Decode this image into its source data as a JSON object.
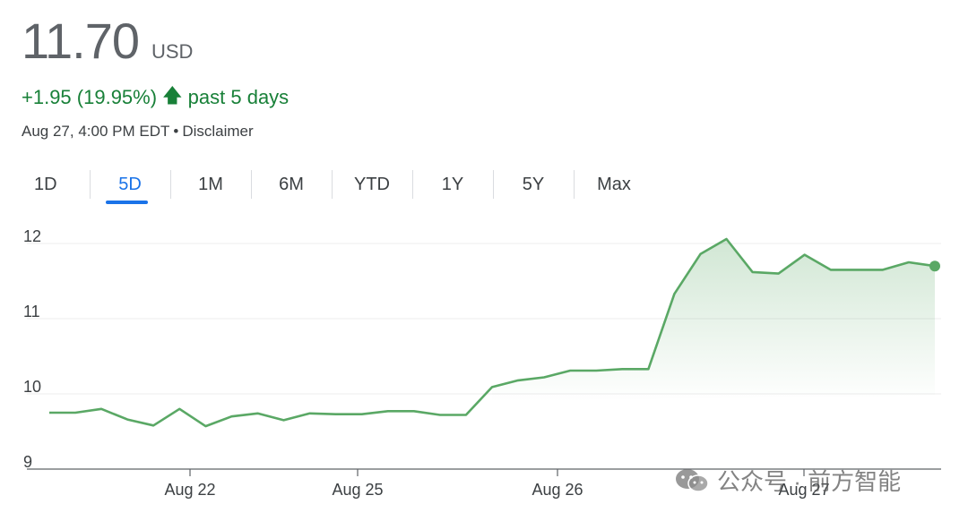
{
  "quote": {
    "price": "11.70",
    "currency": "USD",
    "change": "+1.95 (19.95%)",
    "change_arrow": "🡅",
    "period": "past 5 days",
    "timestamp": "Aug 27, 4:00 PM EDT",
    "disclaimer": "Disclaimer"
  },
  "tabs": [
    {
      "label": "1D",
      "active": false
    },
    {
      "label": "5D",
      "active": true
    },
    {
      "label": "1M",
      "active": false
    },
    {
      "label": "6M",
      "active": false
    },
    {
      "label": "YTD",
      "active": false
    },
    {
      "label": "1Y",
      "active": false
    },
    {
      "label": "5Y",
      "active": false
    },
    {
      "label": "Max",
      "active": false
    }
  ],
  "colors": {
    "line": "#5aa865",
    "positive": "#188038",
    "accent": "#1a73e8"
  },
  "chart_data": {
    "type": "area",
    "x_tick_labels": [
      "Aug 22",
      "Aug 25",
      "Aug 26",
      "Aug 27"
    ],
    "y_tick_labels": [
      "12",
      "11",
      "10",
      "9"
    ],
    "ylim": [
      9,
      12.2
    ],
    "grid": true,
    "series": [
      {
        "values": [
          9.75,
          9.75,
          9.8,
          9.66,
          9.58,
          9.8,
          9.57,
          9.7,
          9.74,
          9.65,
          9.74,
          9.73,
          9.73,
          9.77,
          9.77,
          9.72,
          9.72,
          10.09,
          10.18,
          10.22,
          10.31,
          10.31,
          10.33,
          10.33,
          11.33,
          11.86,
          12.06,
          11.62,
          11.6,
          11.85,
          11.65,
          11.65,
          11.65,
          11.75,
          11.7
        ]
      }
    ]
  },
  "watermark": {
    "text": "公众号 · 前方智能"
  }
}
